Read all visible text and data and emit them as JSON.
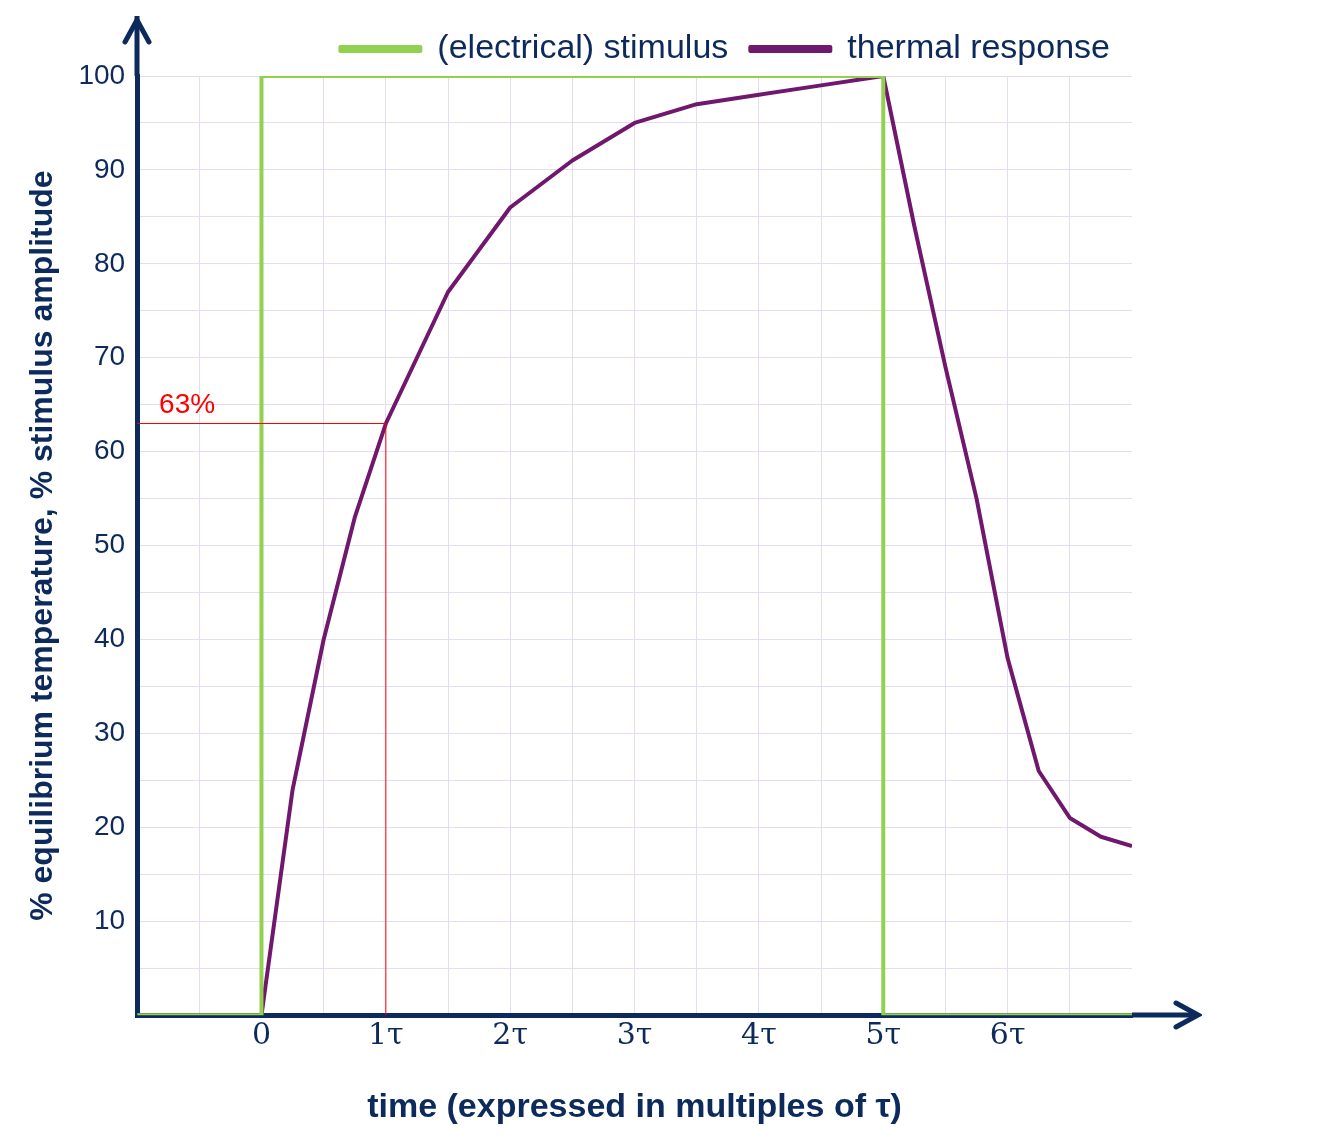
{
  "chart_data": {
    "type": "line",
    "xlabel": "time (expressed in multiples of τ)",
    "ylabel": "% equilibrium temperature, % stimulus amplitude",
    "xlim": [
      -1,
      7
    ],
    "ylim": [
      0,
      100
    ],
    "xticks": [
      {
        "value": -0.5,
        "label": null
      },
      0,
      {
        "value": 0.5,
        "label": null
      },
      {
        "value": 1,
        "label": "1τ"
      },
      {
        "value": 1.5,
        "label": null
      },
      {
        "value": 2,
        "label": "2τ"
      },
      {
        "value": 2.5,
        "label": null
      },
      {
        "value": 3,
        "label": "3τ"
      },
      {
        "value": 3.5,
        "label": null
      },
      {
        "value": 4,
        "label": "4τ"
      },
      {
        "value": 4.5,
        "label": null
      },
      {
        "value": 5,
        "label": "5τ"
      },
      {
        "value": 5.5,
        "label": null
      },
      {
        "value": 6,
        "label": "6τ"
      },
      {
        "value": 6.5,
        "label": null
      }
    ],
    "yticks": [
      {
        "value": 5,
        "label": null
      },
      10,
      {
        "value": 15,
        "label": null
      },
      20,
      {
        "value": 25,
        "label": null
      },
      30,
      {
        "value": 35,
        "label": null
      },
      40,
      {
        "value": 45,
        "label": null
      },
      50,
      {
        "value": 55,
        "label": null
      },
      60,
      {
        "value": 65,
        "label": null
      },
      70,
      {
        "value": 75,
        "label": null
      },
      80,
      {
        "value": 85,
        "label": null
      },
      90,
      {
        "value": 95,
        "label": null
      },
      100
    ],
    "grid": true,
    "legend": "top right",
    "line_style": "solid",
    "marker": "none",
    "series": [
      {
        "name": "(electrical) stimulus",
        "color": "#92d050",
        "x": [
          -1,
          0,
          0,
          5,
          5,
          7
        ],
        "values": [
          0,
          0,
          100,
          100,
          0,
          0
        ]
      },
      {
        "name": "thermal response",
        "color": "#70186e",
        "x": [
          0,
          0.25,
          0.5,
          0.75,
          1,
          1.5,
          2,
          2.5,
          3,
          3.5,
          4,
          4.5,
          5,
          5.25,
          5.5,
          5.75,
          6,
          6.25,
          6.5,
          6.75,
          7
        ],
        "values": [
          0,
          24,
          40,
          53,
          63,
          77,
          86,
          91,
          95,
          97,
          98,
          99,
          100,
          84,
          69,
          55,
          38,
          26,
          21,
          19,
          18
        ]
      }
    ],
    "ref_lines": [
      {
        "axis": "y",
        "value": 63,
        "label": "63%",
        "color": "#ff0000"
      },
      {
        "axis": "x",
        "value": 1,
        "color": "#ff0000"
      }
    ]
  }
}
